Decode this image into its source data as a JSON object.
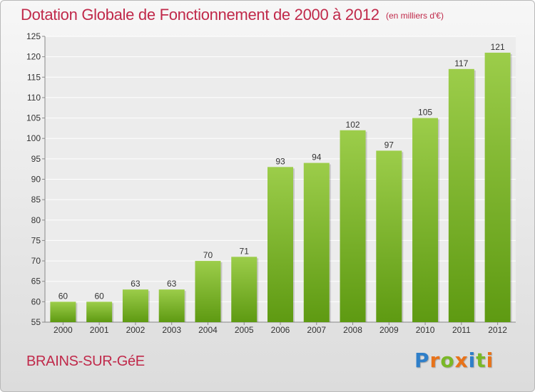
{
  "title": "Dotation Globale de Fonctionnement de 2000 à 2012",
  "unit_note": "(en milliers d'€)",
  "commune": "BRAINS-SUR-GéE",
  "logo": {
    "text": "Proxiti",
    "letters": [
      "P",
      "r",
      "o",
      "x",
      "i",
      "t",
      "i"
    ],
    "colors": [
      "#2f7fc9",
      "#e8731a",
      "#7ab827",
      "#e8731a",
      "#2f7fc9",
      "#7ab827",
      "#e8731a"
    ]
  },
  "colors": {
    "title": "#c0294a",
    "bar_light": "#9ccd4a",
    "bar_dark": "#5e9a12"
  },
  "chart_data": {
    "type": "bar",
    "categories": [
      "2000",
      "2001",
      "2002",
      "2003",
      "2004",
      "2005",
      "2006",
      "2007",
      "2008",
      "2009",
      "2010",
      "2011",
      "2012"
    ],
    "values": [
      60,
      60,
      63,
      63,
      70,
      71,
      93,
      94,
      102,
      97,
      105,
      117,
      121
    ],
    "ylim": [
      55,
      125
    ],
    "yticks": [
      55,
      60,
      65,
      70,
      75,
      80,
      85,
      90,
      95,
      100,
      105,
      110,
      115,
      120,
      125
    ],
    "grid": true,
    "legend": "none"
  }
}
